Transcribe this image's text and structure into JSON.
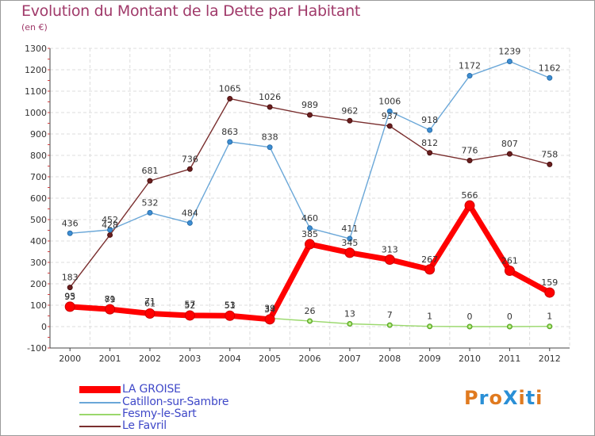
{
  "title": "Evolution du Montant de la Dette par Habitant",
  "subtitle": "(en €)",
  "logo": {
    "text": "ProXiti",
    "colors": [
      "#e07a1f",
      "#2a8fd6",
      "#e07a1f",
      "#2a8fd6",
      "#e07a1f",
      "#2a8fd6",
      "#e07a1f"
    ]
  },
  "chart_data": {
    "type": "line",
    "title": "Evolution du Montant de la Dette par Habitant",
    "ylabel": "(en €)",
    "xlabel": "",
    "x": [
      "2000",
      "2001",
      "2002",
      "2003",
      "2004",
      "2005",
      "2006",
      "2007",
      "2008",
      "2009",
      "2010",
      "2011",
      "2012"
    ],
    "ylim": [
      -100,
      1300
    ],
    "yticks": [
      -100,
      0,
      100,
      200,
      300,
      400,
      500,
      600,
      700,
      800,
      900,
      1000,
      1100,
      1200,
      1300
    ],
    "grid": true,
    "legend_position": "bottom-left",
    "series": [
      {
        "name": "LA GROISE",
        "color": "#ff0000",
        "values": [
          93,
          81,
          61,
          52,
          51,
          34,
          385,
          345,
          313,
          267,
          566,
          261,
          159
        ]
      },
      {
        "name": "Catillon-sur-Sambre",
        "color": "#6aa7d8",
        "values": [
          436,
          452,
          532,
          484,
          863,
          838,
          460,
          411,
          1006,
          918,
          1172,
          1239,
          1162
        ]
      },
      {
        "name": "Fesmy-le-Sart",
        "color": "#9ad86c",
        "values": [
          95,
          79,
          71,
          57,
          53,
          39,
          26,
          13,
          7,
          1,
          0,
          0,
          1
        ]
      },
      {
        "name": "Le Favril",
        "color": "#7a2f2f",
        "values": [
          183,
          428,
          681,
          736,
          1065,
          1026,
          989,
          962,
          937,
          812,
          776,
          807,
          758
        ]
      }
    ]
  }
}
